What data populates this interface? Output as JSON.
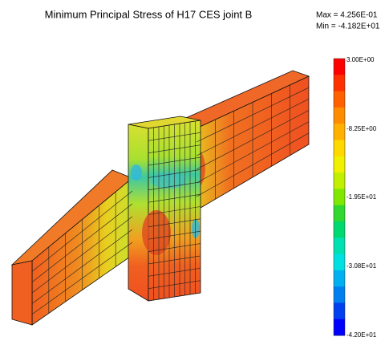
{
  "title": "Minimum Principal Stress of H17 CES joint B",
  "max_label": "Max = 4.256E-01",
  "min_label": "Min = -4.182E+01",
  "legend": {
    "labels": [
      "3.00E+00",
      "-8.25E+00",
      "-1.95E+01",
      "-3.08E+01",
      "-4.20E+01"
    ]
  }
}
